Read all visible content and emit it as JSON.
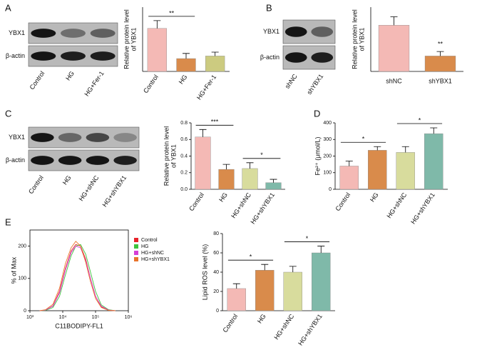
{
  "panel_labels": [
    "A",
    "B",
    "C",
    "D",
    "E"
  ],
  "blots": [
    {
      "rows": [
        "YBX1",
        "β-actin"
      ],
      "lanes": [
        "Control",
        "HG",
        "HG+Fer-1"
      ]
    },
    {
      "rows": [
        "YBX1",
        "β-actin"
      ],
      "lanes": [
        "shNC",
        "shYBX1"
      ]
    },
    {
      "rows": [
        "YBX1",
        "β-actin"
      ],
      "lanes": [
        "Control",
        "HG",
        "HG+shNC",
        "HG+shYBX1"
      ]
    }
  ],
  "chart_data": [
    {
      "type": "bar",
      "ylabel": [
        "Relative protein level",
        "of YBX1"
      ],
      "categories": [
        "Control",
        "HG",
        "HG+Fer-1"
      ],
      "values": [
        0.67,
        0.2,
        0.24
      ],
      "errors": [
        0.12,
        0.08,
        0.06
      ],
      "colors": [
        "#f4b9b5",
        "#d98b4b",
        "#cccb80"
      ],
      "ylim": [
        0,
        1.0
      ],
      "significance": [
        {
          "from": 0,
          "to": 1,
          "label": "**"
        }
      ]
    },
    {
      "type": "bar",
      "ylabel": [
        "Relative protein level",
        "of YBX1"
      ],
      "categories": [
        "shNC",
        "shYBX1"
      ],
      "values": [
        0.72,
        0.24
      ],
      "errors": [
        0.13,
        0.07
      ],
      "colors": [
        "#f4b9b5",
        "#d98b4b"
      ],
      "ylim": [
        0,
        1.0
      ],
      "significance": [
        {
          "from": 1,
          "to": 1,
          "label": "**"
        }
      ]
    },
    {
      "type": "bar",
      "ylabel": [
        "Relative protein level",
        "of YBX1"
      ],
      "categories": [
        "Control",
        "HG",
        "HG+shNC",
        "HG+shYBX1"
      ],
      "values": [
        0.63,
        0.24,
        0.25,
        0.08
      ],
      "errors": [
        0.09,
        0.06,
        0.07,
        0.04
      ],
      "colors": [
        "#f4b9b5",
        "#d98b4b",
        "#d8dc9d",
        "#7fb9a9"
      ],
      "ylim": [
        0,
        0.8
      ],
      "yticks": [
        {
          "value": 0,
          "label": "0.0"
        },
        0.2,
        0.4,
        0.6,
        0.8
      ],
      "significance": [
        {
          "from": 0,
          "to": 1,
          "label": "***"
        },
        {
          "from": 2,
          "to": 3,
          "label": "*"
        }
      ]
    },
    {
      "type": "bar",
      "ylabel": [
        "Fe²⁺ (μmol/L)"
      ],
      "categories": [
        "Control",
        "HG",
        "HG+shNC",
        "HG+shYBX1"
      ],
      "values": [
        140,
        235,
        222,
        335
      ],
      "errors": [
        30,
        22,
        35,
        35
      ],
      "colors": [
        "#f4b9b5",
        "#d98b4b",
        "#d8dc9d",
        "#7fb9a9"
      ],
      "ylim": [
        0,
        400
      ],
      "yticks": [
        0,
        100,
        200,
        300,
        400
      ],
      "significance": [
        {
          "from": 0,
          "to": 1,
          "label": "*"
        },
        {
          "from": 2,
          "to": 3,
          "label": "*"
        }
      ]
    },
    {
      "type": "line",
      "xlabel": "C11BODIPY-FL1",
      "ylabel": [
        "% of Max"
      ],
      "xlog": true,
      "x": [
        2000,
        3000,
        5000,
        8000,
        12000,
        18000,
        25000,
        35000,
        50000,
        70000,
        100000,
        150000,
        250000,
        400000
      ],
      "series": [
        {
          "name": "Control",
          "color": "#e8232a",
          "values": [
            0,
            2,
            15,
            60,
            130,
            185,
            205,
            200,
            160,
            100,
            45,
            12,
            2,
            0
          ]
        },
        {
          "name": "HG",
          "color": "#3ec43e",
          "values": [
            0,
            1,
            10,
            45,
            110,
            170,
            200,
            205,
            175,
            120,
            60,
            18,
            3,
            0
          ]
        },
        {
          "name": "HG+shNC",
          "color": "#d63fd6",
          "values": [
            0,
            2,
            14,
            55,
            125,
            180,
            200,
            195,
            155,
            100,
            45,
            14,
            2,
            0
          ]
        },
        {
          "name": "HG+shYBX1",
          "color": "#e8732a",
          "values": [
            0,
            3,
            20,
            70,
            145,
            195,
            215,
            200,
            150,
            90,
            38,
            10,
            1,
            0
          ]
        }
      ],
      "xlim": [
        1000,
        1000000
      ],
      "xticks": [
        {
          "value": 1000,
          "label": "10³"
        },
        {
          "value": 10000,
          "label": "10⁴"
        },
        {
          "value": 100000,
          "label": "10⁵"
        },
        {
          "value": 1000000,
          "label": "10⁶"
        }
      ],
      "ylim": [
        0,
        250
      ],
      "yticks": [
        0,
        100,
        200
      ]
    },
    {
      "type": "bar",
      "ylabel": [
        "Lipid ROS level (%)"
      ],
      "categories": [
        "Control",
        "HG",
        "HG+shNC",
        "HG+shYBX1"
      ],
      "values": [
        23,
        42,
        40,
        60
      ],
      "errors": [
        5,
        6,
        6,
        7
      ],
      "colors": [
        "#f4b9b5",
        "#d98b4b",
        "#d8dc9d",
        "#7fb9a9"
      ],
      "ylim": [
        0,
        80
      ],
      "yticks": [
        0,
        20,
        40,
        60,
        80
      ],
      "significance": [
        {
          "from": 0,
          "to": 1,
          "label": "*"
        },
        {
          "from": 2,
          "to": 3,
          "label": "*"
        }
      ]
    }
  ]
}
